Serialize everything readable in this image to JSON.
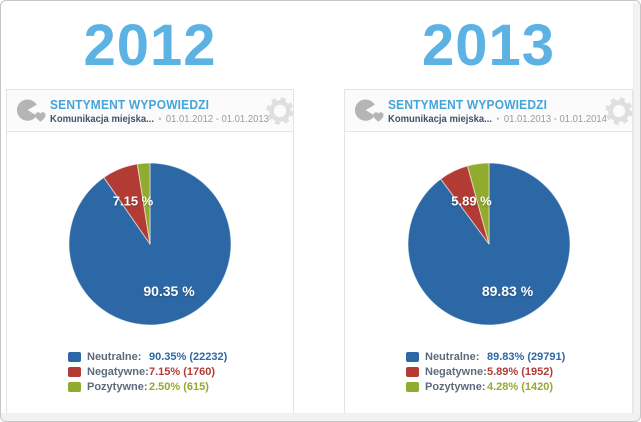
{
  "years": [
    "2012",
    "2013"
  ],
  "header_bullet": "•",
  "colors": {
    "year_heading": "#5db2e4",
    "widget_title": "#45a4d9",
    "pie_blue": "#2d68a6",
    "pie_red": "#b23c35",
    "pie_green": "#91ab2e",
    "legend_label": "#5c6b7c"
  },
  "chart_data": [
    {
      "type": "pie",
      "year": "2012",
      "title": "SENTYMENT WYPOWIEDZI",
      "filter": "Komunikacja miejska...",
      "date_range": "01.01.2012 - 01.01.2013",
      "legend_position": "bottom-left",
      "start_angle_deg": 0,
      "direction": "clockwise",
      "slices": [
        {
          "key": "neutralne",
          "label": "Neutralne",
          "pct": 90.35,
          "count": 22232,
          "color": "#2d68a6",
          "pct_label": "90.35 %",
          "legend_label": "Neutralne:",
          "legend_value": "90.35% (22232)"
        },
        {
          "key": "negatywne",
          "label": "Negatywne",
          "pct": 7.15,
          "count": 1760,
          "color": "#b23c35",
          "pct_label": "7.15 %",
          "legend_label": "Negatywne:",
          "legend_value": "7.15% (1760)"
        },
        {
          "key": "pozytywne",
          "label": "Pozytywne",
          "pct": 2.5,
          "count": 615,
          "color": "#91ab2e",
          "pct_label": "",
          "legend_label": "Pozytywne:",
          "legend_value": "2.50% (615)"
        }
      ]
    },
    {
      "type": "pie",
      "year": "2013",
      "title": "SENTYMENT WYPOWIEDZI",
      "filter": "Komunikacja miejska...",
      "date_range": "01.01.2013 - 01.01.2014",
      "legend_position": "bottom-left",
      "start_angle_deg": 0,
      "direction": "clockwise",
      "slices": [
        {
          "key": "neutralne",
          "label": "Neutralne",
          "pct": 89.83,
          "count": 29791,
          "color": "#2d68a6",
          "pct_label": "89.83 %",
          "legend_label": "Neutralne:",
          "legend_value": "89.83% (29791)"
        },
        {
          "key": "negatywne",
          "label": "Negatywne",
          "pct": 5.89,
          "count": 1952,
          "color": "#b23c35",
          "pct_label": "5.89 %",
          "legend_label": "Negatywne:",
          "legend_value": "5.89% (1952)"
        },
        {
          "key": "pozytywne",
          "label": "Pozytywne",
          "pct": 4.28,
          "count": 1420,
          "color": "#91ab2e",
          "pct_label": "",
          "legend_label": "Pozytywne:",
          "legend_value": "4.28% (1420)"
        }
      ]
    }
  ]
}
